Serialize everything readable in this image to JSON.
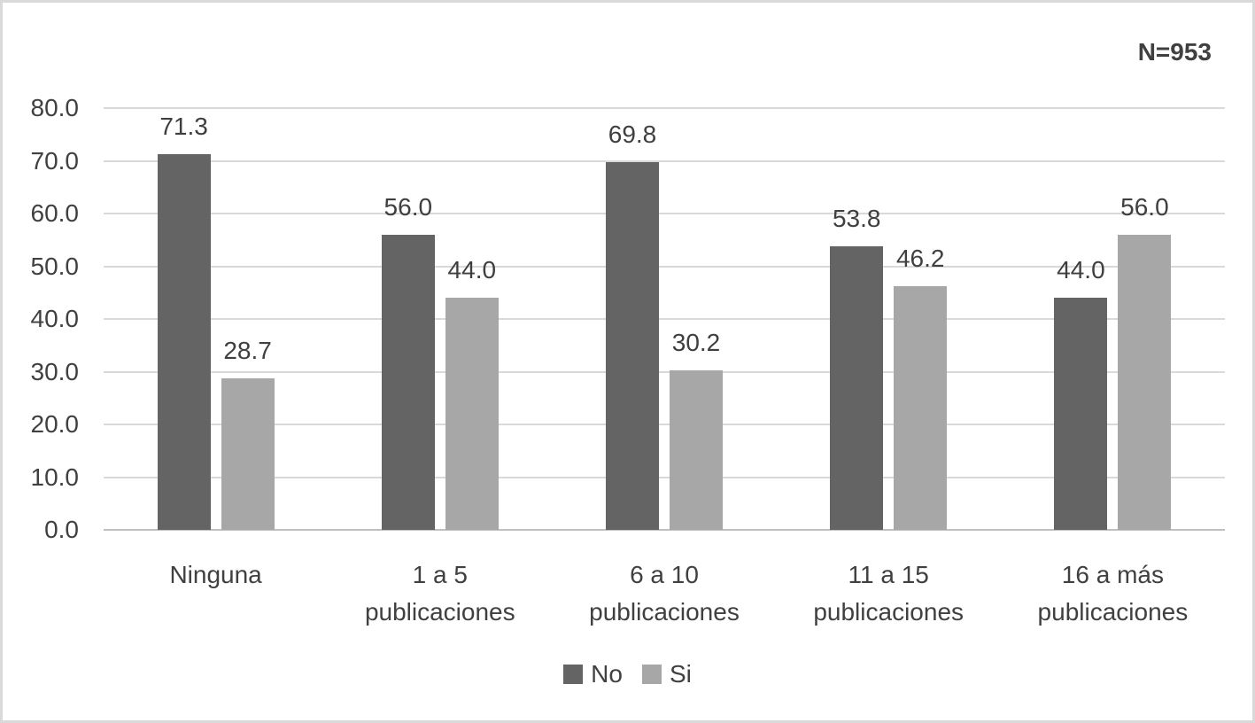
{
  "figure": {
    "annotation": "N=953"
  },
  "chart_data": {
    "type": "bar",
    "title": "",
    "annotation": "N=953",
    "xlabel": "",
    "ylabel": "",
    "categories": [
      "Ninguna",
      "1 a 5 publicaciones",
      "6 a 10 publicaciones",
      "11 a 15 publicaciones",
      "16 a más publicaciones"
    ],
    "series": [
      {
        "name": "No",
        "color": "#646464",
        "values": [
          71.3,
          56.0,
          69.8,
          53.8,
          44.0
        ]
      },
      {
        "name": "Si",
        "color": "#a7a7a7",
        "values": [
          28.7,
          44.0,
          30.2,
          46.2,
          56.0
        ]
      }
    ],
    "ylim": [
      0,
      80
    ],
    "ytick_step": 10,
    "yticks": [
      "80.0",
      "70.0",
      "60.0",
      "50.0",
      "40.0",
      "30.0",
      "20.0",
      "10.0",
      "0.0"
    ],
    "grid": true,
    "gridline_color": "#d9d9d9",
    "axis_line_color": "#c0c0c0",
    "data_labels": true,
    "legend_position": "bottom"
  }
}
